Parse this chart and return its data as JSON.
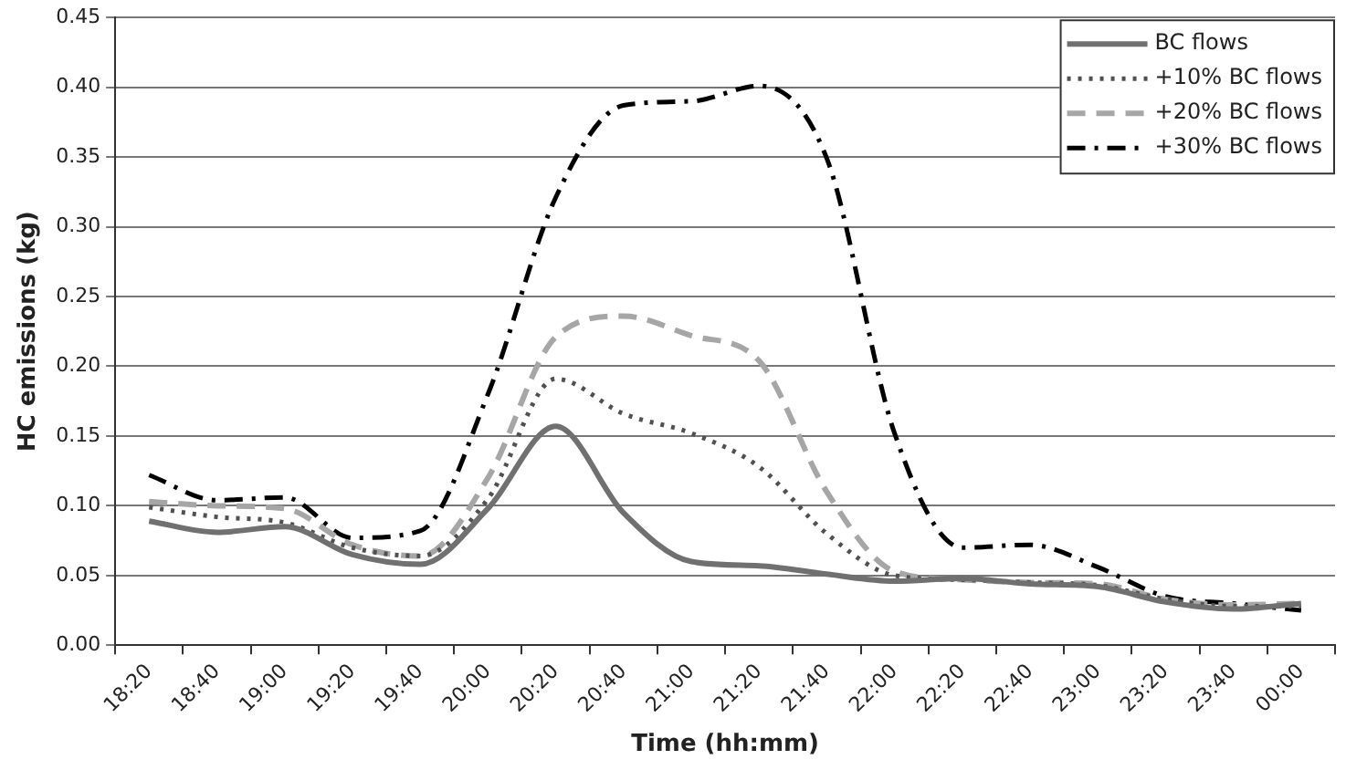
{
  "chart_data": {
    "type": "line",
    "xlabel": "Time (hh:mm)",
    "ylabel": "HC emissions (kg)",
    "categories": [
      "18:20",
      "18:40",
      "19:00",
      "19:20",
      "19:40",
      "20:00",
      "20:20",
      "20:40",
      "21:00",
      "21:20",
      "21:40",
      "22:00",
      "22:20",
      "22:40",
      "23:00",
      "23:20",
      "23:40",
      "00:00"
    ],
    "ylim": [
      0,
      0.45
    ],
    "yticks": [
      {
        "value": 0,
        "label": "0.00"
      },
      {
        "value": 0.05,
        "label": "0.05"
      },
      {
        "value": 0.1,
        "label": "0.10"
      },
      {
        "value": 0.15,
        "label": "0.15"
      },
      {
        "value": 0.2,
        "label": "0.20"
      },
      {
        "value": 0.25,
        "label": "0.25"
      },
      {
        "value": 0.3,
        "label": "0.30"
      },
      {
        "value": 0.35,
        "label": "0.35"
      },
      {
        "value": 0.4,
        "label": "0.40"
      },
      {
        "value": 0.45,
        "label": "0.45"
      }
    ],
    "grid": "y",
    "legend": "top right",
    "marker": "none",
    "series": [
      {
        "name": "BC flows",
        "color": "#707070",
        "line_style": "solid",
        "values": [
          0.089,
          0.081,
          0.085,
          0.065,
          0.058,
          0.098,
          0.157,
          0.095,
          0.06,
          0.057,
          0.051,
          0.046,
          0.048,
          0.044,
          0.042,
          0.031,
          0.026,
          0.03
        ]
      },
      {
        "name": "+10% BC flows",
        "color": "#505050",
        "line_style": "dotted",
        "values": [
          0.099,
          0.092,
          0.088,
          0.07,
          0.064,
          0.105,
          0.191,
          0.166,
          0.152,
          0.128,
          0.08,
          0.05,
          0.047,
          0.045,
          0.043,
          0.033,
          0.028,
          0.028
        ]
      },
      {
        "name": "+20% BC flows",
        "color": "#a6a6a6",
        "line_style": "dashed",
        "values": [
          0.103,
          0.1,
          0.098,
          0.072,
          0.064,
          0.12,
          0.221,
          0.236,
          0.222,
          0.204,
          0.11,
          0.053,
          0.047,
          0.045,
          0.044,
          0.033,
          0.029,
          0.03
        ]
      },
      {
        "name": "+30% BC flows",
        "color": "#000000",
        "line_style": "dashdot",
        "values": [
          0.122,
          0.104,
          0.106,
          0.077,
          0.082,
          0.18,
          0.321,
          0.387,
          0.39,
          0.401,
          0.349,
          0.152,
          0.07,
          0.072,
          0.056,
          0.035,
          0.03,
          0.025
        ]
      }
    ]
  }
}
